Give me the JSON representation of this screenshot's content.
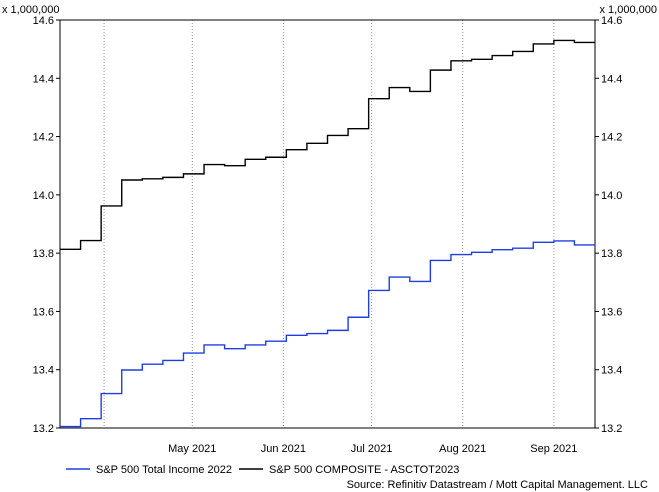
{
  "chart_data": {
    "type": "line",
    "y_unit_left": "x 1,000,000",
    "y_unit_right": "x 1,000,000",
    "ylim": [
      13.2,
      14.6
    ],
    "yticks": [
      13.2,
      13.4,
      13.6,
      13.8,
      14.0,
      14.2,
      14.4,
      14.6
    ],
    "ytick_labels": [
      "13.2",
      "13.4",
      "13.6",
      "13.8",
      "14.0",
      "14.2",
      "14.4",
      "14.6"
    ],
    "xlim": [
      "2021-04-01",
      "2021-09-30"
    ],
    "xticks": [
      "2021-05-01",
      "2021-06-01",
      "2021-07-01",
      "2021-08-01",
      "2021-09-01"
    ],
    "xtick_labels": [
      "May 2021",
      "Jun 2021",
      "Jul 2021",
      "Aug 2021",
      "Sep 2021"
    ],
    "xgrid_dates": [
      "2021-04-16",
      "2021-05-16",
      "2021-06-16",
      "2021-07-16",
      "2021-08-16",
      "2021-09-16"
    ],
    "grid": "vertical dotted",
    "legend_position": "bottom",
    "source": "Source: Refinitiv Datastream / Mott Capital Management. LLC",
    "colors": {
      "series1": "#1f3ee0",
      "series2": "#000000",
      "grid": "#9a9a9a"
    },
    "series": [
      {
        "name": "S&P 500 Total Income 2022",
        "step": true,
        "points": [
          [
            "2021-04-01",
            13.205
          ],
          [
            "2021-04-08",
            13.232
          ],
          [
            "2021-04-15",
            13.318
          ],
          [
            "2021-04-22",
            13.399
          ],
          [
            "2021-04-29",
            13.419
          ],
          [
            "2021-05-06",
            13.432
          ],
          [
            "2021-05-13",
            13.457
          ],
          [
            "2021-05-20",
            13.485
          ],
          [
            "2021-05-27",
            13.472
          ],
          [
            "2021-06-03",
            13.485
          ],
          [
            "2021-06-10",
            13.498
          ],
          [
            "2021-06-17",
            13.518
          ],
          [
            "2021-06-24",
            13.524
          ],
          [
            "2021-07-01",
            13.535
          ],
          [
            "2021-07-08",
            13.58
          ],
          [
            "2021-07-15",
            13.672
          ],
          [
            "2021-07-22",
            13.718
          ],
          [
            "2021-07-29",
            13.703
          ],
          [
            "2021-08-05",
            13.775
          ],
          [
            "2021-08-12",
            13.795
          ],
          [
            "2021-08-19",
            13.803
          ],
          [
            "2021-08-26",
            13.812
          ],
          [
            "2021-09-02",
            13.817
          ],
          [
            "2021-09-09",
            13.837
          ],
          [
            "2021-09-16",
            13.842
          ],
          [
            "2021-09-23",
            13.828
          ],
          [
            "2021-09-30",
            13.828
          ]
        ]
      },
      {
        "name": "S&P 500 COMPOSITE - ASCTOT2023",
        "step": true,
        "points": [
          [
            "2021-04-01",
            13.813
          ],
          [
            "2021-04-08",
            13.843
          ],
          [
            "2021-04-15",
            13.962
          ],
          [
            "2021-04-22",
            14.051
          ],
          [
            "2021-04-29",
            14.055
          ],
          [
            "2021-05-06",
            14.06
          ],
          [
            "2021-05-13",
            14.072
          ],
          [
            "2021-05-20",
            14.104
          ],
          [
            "2021-05-27",
            14.1
          ],
          [
            "2021-06-03",
            14.122
          ],
          [
            "2021-06-10",
            14.129
          ],
          [
            "2021-06-17",
            14.155
          ],
          [
            "2021-06-24",
            14.177
          ],
          [
            "2021-07-01",
            14.204
          ],
          [
            "2021-07-08",
            14.227
          ],
          [
            "2021-07-15",
            14.33
          ],
          [
            "2021-07-22",
            14.368
          ],
          [
            "2021-07-29",
            14.355
          ],
          [
            "2021-08-05",
            14.428
          ],
          [
            "2021-08-12",
            14.46
          ],
          [
            "2021-08-19",
            14.465
          ],
          [
            "2021-08-26",
            14.478
          ],
          [
            "2021-09-02",
            14.492
          ],
          [
            "2021-09-09",
            14.518
          ],
          [
            "2021-09-16",
            14.53
          ],
          [
            "2021-09-23",
            14.523
          ],
          [
            "2021-09-30",
            14.523
          ]
        ]
      }
    ]
  }
}
